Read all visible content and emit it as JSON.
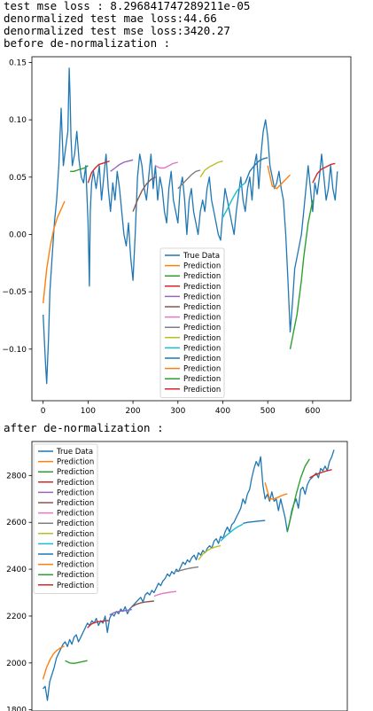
{
  "output": {
    "lines": [
      "test mse loss : 8.296841747289211e-05",
      "denormalized test mae loss:44.66",
      "denormalized test mse loss:3420.27",
      "before de-normalization :"
    ],
    "after_label": "after de-normalization :"
  },
  "colors": {
    "true_data": "#1f77b4",
    "cycle": [
      "#ff7f0e",
      "#2ca02c",
      "#d62728",
      "#9467bd",
      "#8c564b",
      "#e377c2",
      "#7f7f7f",
      "#bcbd22",
      "#17becf",
      "#1f77b4",
      "#ff7f0e",
      "#2ca02c",
      "#d62728"
    ]
  },
  "chart_data": [
    {
      "type": "line",
      "title": "",
      "xlabel": "",
      "ylabel": "",
      "xlim": [
        -25,
        685
      ],
      "ylim": [
        -0.145,
        0.155
      ],
      "xticks": [
        "0",
        "100",
        "200",
        "300",
        "400",
        "500",
        "600"
      ],
      "xtick_values": [
        0,
        100,
        200,
        300,
        400,
        500,
        600
      ],
      "yticks": [
        "0.15",
        "0.10",
        "0.05",
        "0.00",
        "−0.05",
        "−0.10"
      ],
      "ytick_values": [
        0.15,
        0.1,
        0.05,
        0.0,
        -0.05,
        -0.1
      ],
      "grid": false,
      "legend_position": "lower-center",
      "legend": [
        "True Data",
        "Prediction",
        "Prediction",
        "Prediction",
        "Prediction",
        "Prediction",
        "Prediction",
        "Prediction",
        "Prediction",
        "Prediction",
        "Prediction",
        "Prediction",
        "Prediction",
        "Prediction"
      ],
      "true_data": {
        "name": "True Data",
        "x": [
          0,
          5,
          8,
          12,
          15,
          20,
          25,
          30,
          35,
          40,
          45,
          50,
          55,
          58,
          60,
          62,
          65,
          70,
          75,
          80,
          85,
          90,
          95,
          100,
          103,
          105,
          108,
          112,
          118,
          125,
          130,
          135,
          140,
          145,
          150,
          155,
          160,
          165,
          170,
          175,
          180,
          185,
          190,
          195,
          200,
          205,
          210,
          215,
          220,
          225,
          230,
          235,
          240,
          245,
          250,
          255,
          260,
          265,
          270,
          275,
          280,
          285,
          290,
          295,
          300,
          305,
          310,
          315,
          320,
          325,
          330,
          335,
          340,
          345,
          350,
          355,
          360,
          365,
          370,
          375,
          380,
          385,
          390,
          395,
          400,
          405,
          410,
          415,
          420,
          425,
          430,
          435,
          440,
          445,
          450,
          455,
          460,
          465,
          470,
          475,
          480,
          485,
          490,
          495,
          500,
          505,
          510,
          515,
          520,
          525,
          530,
          535,
          540,
          545,
          550,
          555,
          560,
          565,
          570,
          575,
          580,
          585,
          590,
          595,
          600,
          605,
          610,
          615,
          620,
          625,
          630,
          635,
          640,
          645,
          650,
          655
        ],
        "values": [
          -0.07,
          -0.11,
          -0.13,
          -0.09,
          -0.05,
          -0.02,
          0.01,
          0.03,
          0.06,
          0.11,
          0.06,
          0.075,
          0.09,
          0.145,
          0.12,
          0.085,
          0.06,
          0.07,
          0.09,
          0.065,
          0.05,
          0.045,
          0.06,
          0.01,
          -0.045,
          0.02,
          0.045,
          0.055,
          0.04,
          0.06,
          0.03,
          0.05,
          0.07,
          0.04,
          0.02,
          0.045,
          0.03,
          0.055,
          0.04,
          0.02,
          0.0,
          -0.01,
          0.01,
          -0.02,
          -0.04,
          0.0,
          0.05,
          0.07,
          0.06,
          0.04,
          0.03,
          0.05,
          0.07,
          0.04,
          0.06,
          0.03,
          0.05,
          0.04,
          0.02,
          0.01,
          0.04,
          0.055,
          0.03,
          0.02,
          0.01,
          0.04,
          0.05,
          0.03,
          0.0,
          0.03,
          0.04,
          0.02,
          0.01,
          0.0,
          0.02,
          0.03,
          0.02,
          0.04,
          0.05,
          0.03,
          0.02,
          0.01,
          0.0,
          -0.005,
          0.02,
          0.04,
          0.03,
          0.02,
          0.01,
          0.0,
          0.02,
          0.035,
          0.05,
          0.03,
          0.02,
          0.04,
          0.05,
          0.03,
          0.06,
          0.07,
          0.04,
          0.07,
          0.09,
          0.1,
          0.085,
          0.06,
          0.05,
          0.04,
          0.045,
          0.055,
          0.04,
          0.03,
          0.0,
          -0.04,
          -0.085,
          -0.06,
          -0.03,
          -0.02,
          -0.01,
          0.0,
          0.02,
          0.04,
          0.06,
          0.04,
          0.02,
          0.045,
          0.035,
          0.05,
          0.07,
          0.05,
          0.03,
          0.04,
          0.06,
          0.04,
          0.03,
          0.055
        ]
      },
      "predictions": [
        {
          "name": "Prediction",
          "x": [
            0,
            8,
            16,
            24,
            32,
            40,
            48
          ],
          "values": [
            -0.06,
            -0.03,
            -0.01,
            0.005,
            0.015,
            0.022,
            0.029
          ]
        },
        {
          "name": "Prediction",
          "x": [
            60,
            68,
            76,
            84,
            92,
            100
          ],
          "values": [
            0.055,
            0.055,
            0.056,
            0.057,
            0.058,
            0.06
          ]
        },
        {
          "name": "Prediction",
          "x": [
            100,
            108,
            116,
            124,
            132,
            140,
            148
          ],
          "values": [
            0.045,
            0.054,
            0.058,
            0.061,
            0.062,
            0.063,
            0.064
          ]
        },
        {
          "name": "Prediction",
          "x": [
            150,
            160,
            170,
            180,
            190,
            200
          ],
          "values": [
            0.055,
            0.058,
            0.061,
            0.063,
            0.064,
            0.065
          ]
        },
        {
          "name": "Prediction",
          "x": [
            200,
            210,
            220,
            230,
            240,
            250
          ],
          "values": [
            0.02,
            0.03,
            0.038,
            0.044,
            0.048,
            0.05
          ]
        },
        {
          "name": "Prediction",
          "x": [
            250,
            260,
            270,
            280,
            290,
            300
          ],
          "values": [
            0.06,
            0.058,
            0.058,
            0.06,
            0.062,
            0.063
          ]
        },
        {
          "name": "Prediction",
          "x": [
            300,
            310,
            320,
            330,
            340,
            350
          ],
          "values": [
            0.04,
            0.044,
            0.048,
            0.052,
            0.055,
            0.056
          ]
        },
        {
          "name": "Prediction",
          "x": [
            350,
            360,
            370,
            380,
            390,
            400
          ],
          "values": [
            0.05,
            0.056,
            0.059,
            0.061,
            0.063,
            0.064
          ]
        },
        {
          "name": "Prediction",
          "x": [
            400,
            410,
            420,
            430,
            440,
            450
          ],
          "values": [
            0.015,
            0.022,
            0.03,
            0.037,
            0.042,
            0.045
          ]
        },
        {
          "name": "Prediction",
          "x": [
            450,
            460,
            470,
            480,
            490,
            500
          ],
          "values": [
            0.045,
            0.055,
            0.06,
            0.064,
            0.066,
            0.067
          ]
        },
        {
          "name": "Prediction",
          "x": [
            500,
            510,
            520,
            530,
            540,
            550
          ],
          "values": [
            0.06,
            0.042,
            0.04,
            0.044,
            0.048,
            0.052
          ]
        },
        {
          "name": "Prediction",
          "x": [
            550,
            555,
            560,
            565,
            570,
            575,
            580,
            585,
            590,
            595,
            600
          ],
          "values": [
            -0.1,
            -0.09,
            -0.08,
            -0.07,
            -0.055,
            -0.04,
            -0.02,
            -0.005,
            0.01,
            0.02,
            0.03
          ]
        },
        {
          "name": "Prediction",
          "x": [
            600,
            610,
            620,
            630,
            640,
            650
          ],
          "values": [
            0.045,
            0.053,
            0.057,
            0.059,
            0.061,
            0.062
          ]
        }
      ]
    },
    {
      "type": "line",
      "title": "",
      "xlabel": "",
      "ylabel": "",
      "xlim": [
        -25,
        685
      ],
      "ylim": [
        1795,
        2945
      ],
      "xticks": [],
      "yticks": [
        "2800",
        "2600",
        "2400",
        "2200",
        "2000",
        "1800"
      ],
      "ytick_values": [
        2800,
        2600,
        2400,
        2200,
        2000,
        1800
      ],
      "grid": false,
      "legend_position": "upper-left",
      "legend": [
        "True Data",
        "Prediction",
        "Prediction",
        "Prediction",
        "Prediction",
        "Prediction",
        "Prediction",
        "Prediction",
        "Prediction",
        "Prediction",
        "Prediction",
        "Prediction",
        "Prediction",
        "Prediction"
      ],
      "true_data": {
        "name": "True Data",
        "x": [
          0,
          5,
          10,
          15,
          20,
          25,
          30,
          35,
          40,
          45,
          50,
          55,
          60,
          65,
          70,
          75,
          80,
          85,
          90,
          95,
          100,
          105,
          110,
          115,
          120,
          125,
          130,
          135,
          140,
          145,
          150,
          155,
          160,
          165,
          170,
          175,
          180,
          185,
          190,
          195,
          200,
          205,
          210,
          215,
          220,
          225,
          230,
          235,
          240,
          245,
          250,
          255,
          260,
          265,
          270,
          275,
          280,
          285,
          290,
          295,
          300,
          305,
          310,
          315,
          320,
          325,
          330,
          335,
          340,
          345,
          350,
          355,
          360,
          365,
          370,
          375,
          380,
          385,
          390,
          395,
          400,
          405,
          410,
          415,
          420,
          425,
          430,
          435,
          440,
          445,
          450,
          455,
          460,
          465,
          470,
          475,
          480,
          485,
          490,
          495,
          500,
          505,
          510,
          515,
          520,
          525,
          530,
          535,
          540,
          545,
          550,
          555,
          560,
          565,
          570,
          575,
          580,
          585,
          590,
          595,
          600,
          605,
          610,
          615,
          620,
          625,
          630,
          635,
          640,
          645,
          650,
          655
        ],
        "values": [
          1890,
          1900,
          1840,
          1920,
          1950,
          1980,
          2020,
          2040,
          2060,
          2080,
          2090,
          2070,
          2100,
          2080,
          2110,
          2120,
          2090,
          2110,
          2130,
          2150,
          2170,
          2160,
          2180,
          2170,
          2190,
          2160,
          2180,
          2170,
          2200,
          2130,
          2190,
          2210,
          2200,
          2220,
          2210,
          2230,
          2220,
          2240,
          2210,
          2230,
          2240,
          2250,
          2260,
          2270,
          2280,
          2260,
          2290,
          2300,
          2290,
          2310,
          2300,
          2320,
          2340,
          2330,
          2350,
          2360,
          2380,
          2370,
          2390,
          2380,
          2400,
          2390,
          2410,
          2430,
          2420,
          2440,
          2430,
          2450,
          2460,
          2440,
          2470,
          2460,
          2480,
          2470,
          2490,
          2500,
          2490,
          2520,
          2530,
          2510,
          2540,
          2530,
          2560,
          2580,
          2560,
          2590,
          2600,
          2620,
          2640,
          2660,
          2700,
          2680,
          2720,
          2740,
          2790,
          2830,
          2860,
          2840,
          2880,
          2760,
          2700,
          2720,
          2690,
          2730,
          2690,
          2700,
          2650,
          2700,
          2660,
          2620,
          2560,
          2600,
          2650,
          2680,
          2700,
          2660,
          2740,
          2750,
          2720,
          2760,
          2780,
          2790,
          2800,
          2810,
          2790,
          2830,
          2820,
          2840,
          2820,
          2860,
          2880,
          2910
        ]
      },
      "predictions": [
        {
          "name": "Prediction",
          "x": [
            0,
            8,
            16,
            24,
            32,
            40,
            48
          ],
          "values": [
            1930,
            1980,
            2015,
            2040,
            2055,
            2065,
            2072
          ]
        },
        {
          "name": "Prediction",
          "x": [
            50,
            60,
            70,
            80,
            90,
            100
          ],
          "values": [
            2010,
            2000,
            1998,
            2002,
            2006,
            2010
          ]
        },
        {
          "name": "Prediction",
          "x": [
            100,
            108,
            116,
            124,
            132,
            140,
            148
          ],
          "values": [
            2150,
            2165,
            2172,
            2176,
            2178,
            2180,
            2181
          ]
        },
        {
          "name": "Prediction",
          "x": [
            150,
            160,
            170,
            180,
            190,
            200
          ],
          "values": [
            2205,
            2215,
            2220,
            2222,
            2225,
            2228
          ]
        },
        {
          "name": "Prediction",
          "x": [
            200,
            210,
            220,
            230,
            240,
            250
          ],
          "values": [
            2240,
            2250,
            2256,
            2260,
            2262,
            2264
          ]
        },
        {
          "name": "Prediction",
          "x": [
            250,
            260,
            270,
            280,
            290,
            300
          ],
          "values": [
            2285,
            2292,
            2297,
            2300,
            2303,
            2305
          ]
        },
        {
          "name": "Prediction",
          "x": [
            300,
            310,
            320,
            330,
            340,
            350
          ],
          "values": [
            2390,
            2395,
            2400,
            2404,
            2407,
            2410
          ]
        },
        {
          "name": "Prediction",
          "x": [
            350,
            360,
            370,
            380,
            390,
            400
          ],
          "values": [
            2440,
            2465,
            2480,
            2490,
            2496,
            2500
          ]
        },
        {
          "name": "Prediction",
          "x": [
            400,
            410,
            420,
            430,
            440,
            450
          ],
          "values": [
            2520,
            2540,
            2555,
            2570,
            2583,
            2592
          ]
        },
        {
          "name": "Prediction",
          "x": [
            450,
            460,
            470,
            480,
            490,
            500
          ],
          "values": [
            2595,
            2600,
            2602,
            2604,
            2606,
            2608
          ]
        },
        {
          "name": "Prediction",
          "x": [
            500,
            510,
            520,
            530,
            540,
            550
          ],
          "values": [
            2770,
            2700,
            2700,
            2708,
            2716,
            2722
          ]
        },
        {
          "name": "Prediction",
          "x": [
            550,
            560,
            570,
            580,
            590,
            600
          ],
          "values": [
            2560,
            2640,
            2720,
            2790,
            2840,
            2870
          ]
        },
        {
          "name": "Prediction",
          "x": [
            600,
            610,
            620,
            630,
            640,
            650
          ],
          "values": [
            2790,
            2800,
            2808,
            2815,
            2820,
            2825
          ]
        }
      ]
    }
  ]
}
